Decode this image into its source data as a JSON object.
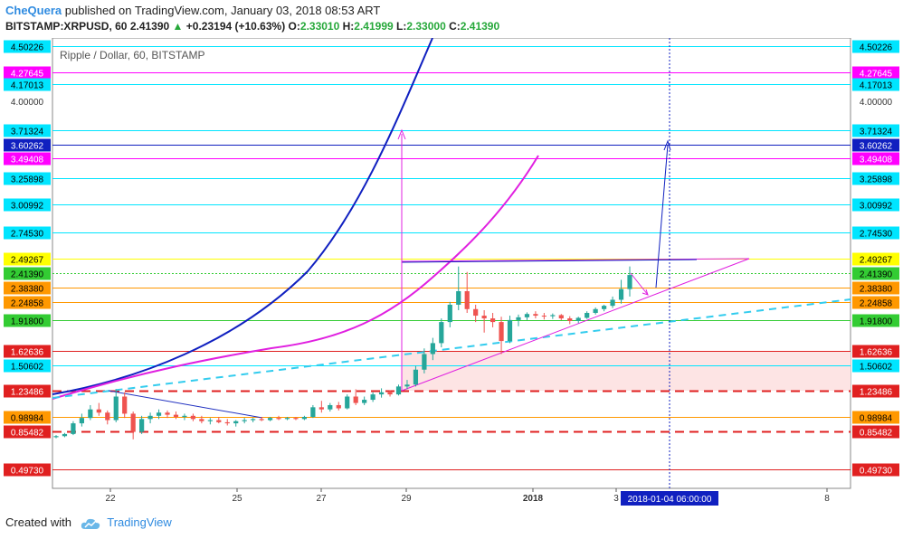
{
  "header": {
    "author": "CheQuera",
    "published_text": "published on TradingView.com, January 03, 2018 08:53 ART",
    "symbol": "BITSTAMP:XRPUSD, 60",
    "last": "2.41390",
    "change": "+0.23194 (+10.63%)",
    "open_label": "O:",
    "open": "2.33010",
    "high_label": "H:",
    "high": "2.41999",
    "low_label": "L:",
    "low": "2.33000",
    "close_label": "C:",
    "close": "2.41390"
  },
  "chart_title": "Ripple / Dollar, 60, BITSTAMP",
  "footer": {
    "created_with": "Created with",
    "brand": "TradingView"
  },
  "cursor_date": "2018-01-04 06:00:00",
  "colors": {
    "cyan": "#00e5ff",
    "magenta": "#ff00ff",
    "blue": "#1020c0",
    "yellow": "#ffff00",
    "orange": "#ff9800",
    "green": "#33cc33",
    "red": "#e02020",
    "up": "#26a69a",
    "down": "#ef5350"
  },
  "chart_data": {
    "type": "candlestick",
    "x_ticks": [
      "22",
      "25",
      "27",
      "29",
      "2018",
      "3",
      "8"
    ],
    "price_levels": [
      {
        "label": "4.50226",
        "value": 4.50226,
        "color": "#00e5ff",
        "style": "solid"
      },
      {
        "label": "4.27645",
        "value": 4.27645,
        "color": "#ff00ff",
        "style": "solid"
      },
      {
        "label": "4.17013",
        "value": 4.17013,
        "color": "#00e5ff",
        "style": "solid"
      },
      {
        "label": "3.71324",
        "value": 3.71324,
        "color": "#00e5ff",
        "style": "solid"
      },
      {
        "label": "3.60262",
        "value": 3.60262,
        "color": "#1020c0",
        "style": "solid"
      },
      {
        "label": "3.49408",
        "value": 3.49408,
        "color": "#ff00ff",
        "style": "solid"
      },
      {
        "label": "3.25898",
        "value": 3.25898,
        "color": "#00e5ff",
        "style": "solid"
      },
      {
        "label": "3.00992",
        "value": 3.00992,
        "color": "#00e5ff",
        "style": "solid"
      },
      {
        "label": "2.74530",
        "value": 2.7453,
        "color": "#00e5ff",
        "style": "solid"
      },
      {
        "label": "2.49267",
        "value": 2.49267,
        "color": "#ffff00",
        "style": "solid"
      },
      {
        "label": "2.41390",
        "value": 2.4139,
        "color": "#33cc33",
        "style": "dotted"
      },
      {
        "label": "2.38380",
        "value": 2.3838,
        "color": "#ff9800",
        "style": "solid"
      },
      {
        "label": "2.24858",
        "value": 2.24858,
        "color": "#ff9800",
        "style": "solid"
      },
      {
        "label": "1.91800",
        "value": 1.918,
        "color": "#33cc33",
        "style": "solid"
      },
      {
        "label": "1.62636",
        "value": 1.62636,
        "color": "#e02020",
        "style": "solid"
      },
      {
        "label": "1.50602",
        "value": 1.50602,
        "color": "#00e5ff",
        "style": "solid"
      },
      {
        "label": "1.23486",
        "value": 1.23486,
        "color": "#e02020",
        "style": "dashed"
      },
      {
        "label": "0.98984",
        "value": 0.98984,
        "color": "#ff9800",
        "style": "solid"
      },
      {
        "label": "0.85482",
        "value": 0.85482,
        "color": "#e02020",
        "style": "dashed"
      },
      {
        "label": "0.49730",
        "value": 0.4973,
        "color": "#e02020",
        "style": "solid"
      }
    ],
    "axis_ticks": [
      "4.00000"
    ],
    "candles": [
      [
        0.8,
        0.82,
        0.79,
        0.81
      ],
      [
        0.81,
        0.84,
        0.8,
        0.83
      ],
      [
        0.83,
        0.95,
        0.82,
        0.93
      ],
      [
        0.93,
        1.02,
        0.9,
        0.98
      ],
      [
        0.98,
        1.1,
        0.96,
        1.06
      ],
      [
        1.06,
        1.12,
        1.0,
        1.03
      ],
      [
        1.03,
        1.05,
        0.92,
        0.96
      ],
      [
        0.96,
        1.25,
        0.94,
        1.18
      ],
      [
        1.18,
        1.22,
        0.98,
        1.02
      ],
      [
        1.02,
        1.04,
        0.78,
        0.85
      ],
      [
        0.85,
        1.0,
        0.83,
        0.97
      ],
      [
        0.97,
        1.03,
        0.93,
        1.0
      ],
      [
        1.0,
        1.06,
        0.97,
        1.03
      ],
      [
        1.03,
        1.05,
        0.98,
        1.01
      ],
      [
        1.01,
        1.04,
        0.97,
        0.99
      ],
      [
        0.99,
        1.02,
        0.96,
        1.0
      ],
      [
        1.0,
        1.02,
        0.95,
        0.97
      ],
      [
        0.97,
        1.0,
        0.93,
        0.95
      ],
      [
        0.95,
        0.98,
        0.92,
        0.96
      ],
      [
        0.96,
        0.99,
        0.93,
        0.94
      ],
      [
        0.94,
        0.97,
        0.91,
        0.93
      ],
      [
        0.93,
        0.96,
        0.9,
        0.95
      ],
      [
        0.95,
        0.98,
        0.93,
        0.96
      ],
      [
        0.96,
        0.98,
        0.94,
        0.97
      ],
      [
        0.97,
        0.99,
        0.95,
        0.96
      ],
      [
        0.96,
        0.99,
        0.95,
        0.98
      ],
      [
        0.98,
        1.0,
        0.96,
        0.97
      ],
      [
        0.97,
        0.99,
        0.96,
        0.98
      ],
      [
        0.98,
        0.99,
        0.96,
        0.97
      ],
      [
        0.97,
        1.0,
        0.96,
        0.99
      ],
      [
        0.99,
        1.1,
        0.98,
        1.08
      ],
      [
        1.08,
        1.14,
        1.03,
        1.06
      ],
      [
        1.06,
        1.12,
        1.04,
        1.1
      ],
      [
        1.1,
        1.13,
        1.05,
        1.07
      ],
      [
        1.07,
        1.2,
        1.06,
        1.18
      ],
      [
        1.18,
        1.25,
        1.1,
        1.12
      ],
      [
        1.12,
        1.18,
        1.1,
        1.15
      ],
      [
        1.15,
        1.22,
        1.13,
        1.2
      ],
      [
        1.2,
        1.26,
        1.17,
        1.22
      ],
      [
        1.22,
        1.24,
        1.18,
        1.2
      ],
      [
        1.2,
        1.3,
        1.19,
        1.28
      ],
      [
        1.28,
        1.35,
        1.25,
        1.3
      ],
      [
        1.3,
        1.5,
        1.28,
        1.46
      ],
      [
        1.46,
        1.65,
        1.42,
        1.6
      ],
      [
        1.6,
        1.75,
        1.55,
        1.7
      ],
      [
        1.7,
        1.95,
        1.66,
        1.9
      ],
      [
        1.9,
        2.25,
        1.85,
        2.2
      ],
      [
        2.2,
        2.45,
        2.1,
        2.35
      ],
      [
        2.35,
        2.42,
        2.05,
        2.12
      ],
      [
        2.12,
        2.2,
        1.9,
        2.0
      ],
      [
        2.0,
        2.1,
        1.8,
        1.95
      ],
      [
        1.95,
        2.05,
        1.85,
        1.9
      ],
      [
        1.9,
        1.98,
        1.6,
        1.72
      ],
      [
        1.72,
        2.0,
        1.7,
        1.92
      ],
      [
        1.92,
        2.02,
        1.86,
        1.97
      ],
      [
        1.97,
        2.06,
        1.92,
        2.03
      ],
      [
        2.03,
        2.08,
        1.95,
        2.0
      ],
      [
        2.0,
        2.05,
        1.93,
        1.99
      ],
      [
        1.99,
        2.04,
        1.94,
        2.01
      ],
      [
        2.01,
        2.03,
        1.92,
        1.95
      ],
      [
        1.95,
        1.99,
        1.88,
        1.91
      ],
      [
        1.91,
        1.98,
        1.89,
        1.96
      ],
      [
        1.96,
        2.08,
        1.94,
        2.05
      ],
      [
        2.05,
        2.15,
        2.02,
        2.12
      ],
      [
        2.12,
        2.2,
        2.08,
        2.18
      ],
      [
        2.18,
        2.3,
        2.14,
        2.27
      ],
      [
        2.27,
        2.4,
        2.22,
        2.37
      ],
      [
        2.37,
        2.45,
        2.3,
        2.41
      ]
    ]
  }
}
